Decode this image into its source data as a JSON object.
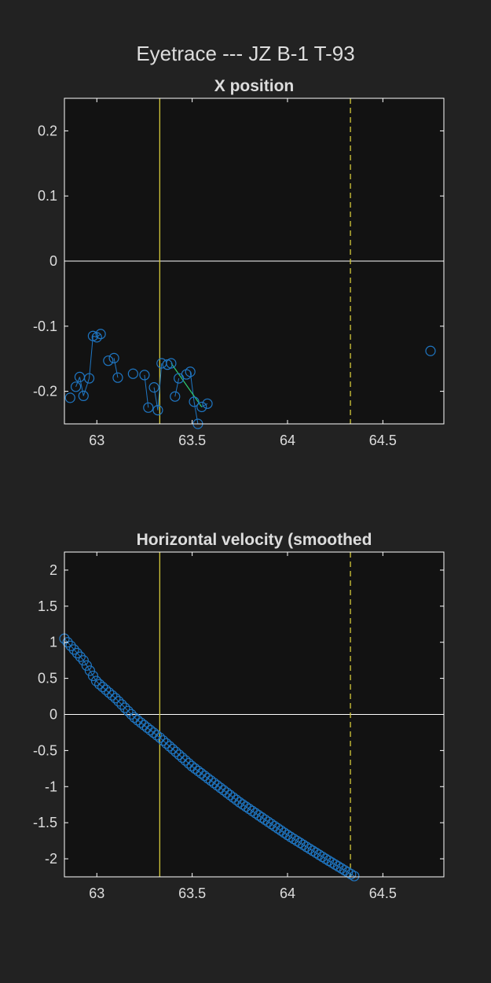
{
  "figure_title": "Eyetrace --- JZ B-1 T-93",
  "colors": {
    "background": "#222222",
    "axes_background": "#121212",
    "axes_border": "#ffffff",
    "text": "#dddddd",
    "marker": "#1f77c4",
    "highlight_line": "#2ecc71",
    "event_line": "#d4c83a",
    "zero_line": "#ffffff"
  },
  "chart_data": [
    {
      "type": "scatter",
      "title": "X position",
      "xlim": [
        62.83,
        64.82
      ],
      "ylim": [
        -0.25,
        0.25
      ],
      "xticks": [
        63,
        63.5,
        64,
        64.5
      ],
      "xtick_labels": [
        "63",
        "63.5",
        "64",
        "64.5"
      ],
      "yticks": [
        0.2,
        0.1,
        0,
        -0.1,
        -0.2
      ],
      "ytick_labels": [
        "0.2",
        "0.1",
        "0",
        "-0.1",
        "-0.2"
      ],
      "zero_line": 0,
      "event_lines": [
        {
          "x": 63.33,
          "style": "solid"
        },
        {
          "x": 64.33,
          "style": "dashed"
        }
      ],
      "series": [
        {
          "x": [
            62.86,
            62.89,
            62.91,
            62.93,
            62.96,
            62.98,
            63.0,
            63.02,
            63.06,
            63.09,
            63.11,
            63.19,
            63.25,
            63.27,
            63.3,
            63.32,
            63.34,
            63.37,
            63.39,
            63.41,
            63.43,
            63.47,
            63.49,
            63.51,
            63.53,
            63.55,
            63.58,
            64.75
          ],
          "y": [
            -0.21,
            -0.193,
            -0.178,
            -0.207,
            -0.18,
            -0.115,
            -0.117,
            -0.112,
            -0.153,
            -0.149,
            -0.179,
            -0.173,
            -0.175,
            -0.225,
            -0.194,
            -0.229,
            -0.157,
            -0.159,
            -0.157,
            -0.208,
            -0.18,
            -0.174,
            -0.17,
            -0.216,
            -0.25,
            -0.224,
            -0.219,
            -0.138
          ]
        }
      ],
      "connections": [
        [
          1,
          2
        ],
        [
          2,
          3
        ],
        [
          3,
          4
        ],
        [
          4,
          5
        ],
        [
          5,
          6
        ],
        [
          6,
          7
        ],
        [
          9,
          10
        ],
        [
          12,
          13
        ],
        [
          14,
          15
        ],
        [
          15,
          16
        ],
        [
          19,
          20
        ],
        [
          22,
          23
        ],
        [
          23,
          24
        ],
        [
          25,
          26
        ]
      ],
      "highlight_segment": [
        18,
        25
      ]
    },
    {
      "type": "scatter",
      "title": "Horizontal velocity (smoothed",
      "xlim": [
        62.83,
        64.82
      ],
      "ylim": [
        -2.25,
        2.25
      ],
      "xticks": [
        63,
        63.5,
        64,
        64.5
      ],
      "xtick_labels": [
        "63",
        "63.5",
        "64",
        "64.5"
      ],
      "yticks": [
        2,
        1.5,
        1,
        0.5,
        0,
        -0.5,
        -1,
        -1.5,
        -2
      ],
      "ytick_labels": [
        "2",
        "1.5",
        "1",
        "0.5",
        "0",
        "-0.5",
        "-1",
        "-1.5",
        "-2"
      ],
      "zero_line": 0,
      "event_lines": [
        {
          "x": 63.33,
          "style": "solid"
        },
        {
          "x": 64.33,
          "style": "dashed"
        }
      ],
      "series": [
        {
          "x_start": 62.83,
          "x_end": 64.35,
          "x_step": 0.0167,
          "anchors": [
            [
              62.83,
              1.05
            ],
            [
              62.93,
              0.75
            ],
            [
              63.0,
              0.45
            ],
            [
              63.1,
              0.22
            ],
            [
              63.2,
              -0.05
            ],
            [
              63.33,
              -0.32
            ],
            [
              63.5,
              -0.72
            ],
            [
              63.75,
              -1.22
            ],
            [
              64.0,
              -1.67
            ],
            [
              64.2,
              -2.0
            ],
            [
              64.35,
              -2.24
            ]
          ]
        }
      ]
    }
  ]
}
